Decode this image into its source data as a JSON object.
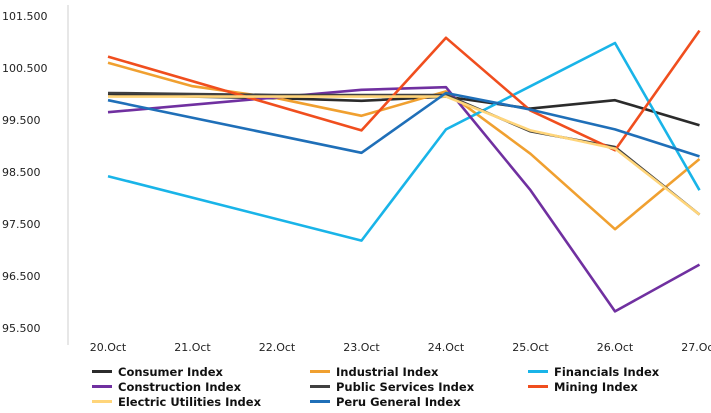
{
  "chart_data": {
    "type": "line",
    "categories": [
      "20.Oct",
      "21.Oct",
      "22.Oct",
      "23.Oct",
      "24.Oct",
      "25.Oct",
      "26.Oct",
      "27.Oct"
    ],
    "ylim": [
      95.5,
      101.5
    ],
    "yticks": [
      "101.500",
      "100.500",
      "99.500",
      "98.500",
      "97.500",
      "96.500",
      "95.500"
    ],
    "ytick_values": [
      101.5,
      100.5,
      99.5,
      98.5,
      97.5,
      96.5,
      95.5
    ],
    "grid": false,
    "legend_position": "bottom",
    "series": [
      {
        "name": "Consumer Index",
        "color": "#2b2b2b",
        "values": [
          100.0,
          99.95,
          99.92,
          99.87,
          99.95,
          99.72,
          99.88,
          99.4
        ]
      },
      {
        "name": "Industrial Index",
        "color": "#f0a030",
        "values": [
          100.6,
          100.15,
          99.92,
          99.58,
          100.05,
          98.85,
          97.4,
          98.75
        ]
      },
      {
        "name": "Financials Index",
        "color": "#19b4e8",
        "values": [
          98.42,
          null,
          null,
          97.18,
          99.32,
          100.15,
          100.98,
          98.15
        ]
      },
      {
        "name": "Construction Index",
        "color": "#7030a0",
        "values": [
          99.65,
          null,
          null,
          100.08,
          100.13,
          98.15,
          95.82,
          96.72
        ]
      },
      {
        "name": "Public Services Index",
        "color": "#404040",
        "values": [
          100.02,
          100.0,
          99.98,
          99.98,
          99.98,
          99.28,
          98.98,
          97.68
        ]
      },
      {
        "name": "Mining Index",
        "color": "#f04e1e",
        "values": [
          100.72,
          null,
          null,
          99.3,
          101.08,
          99.68,
          98.92,
          101.22
        ]
      },
      {
        "name": "Electric Utilities Index",
        "color": "#ffd57a",
        "values": [
          99.95,
          99.95,
          99.95,
          99.95,
          99.95,
          99.3,
          98.95,
          97.68
        ]
      },
      {
        "name": "Peru General Index",
        "color": "#1f6fb8",
        "values": [
          99.88,
          null,
          null,
          98.87,
          100.02,
          99.7,
          99.32,
          98.8
        ]
      }
    ]
  }
}
